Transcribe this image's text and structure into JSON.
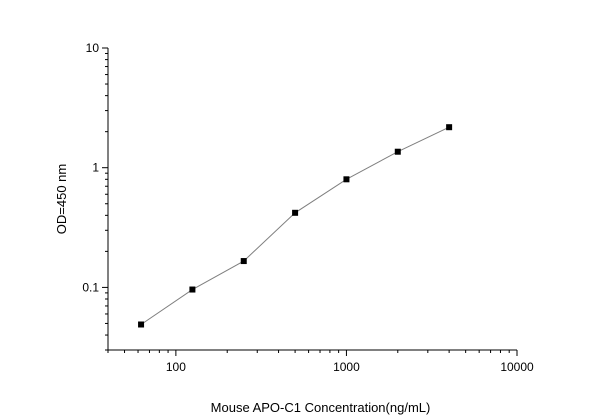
{
  "chart_data": {
    "type": "scatter",
    "title": "",
    "xlabel": "Mouse APO-C1  Concentration(ng/mL)",
    "ylabel": "OD=450 nm",
    "x_scale": "log",
    "y_scale": "log",
    "xlim": [
      40,
      10000
    ],
    "ylim": [
      0.03,
      10
    ],
    "x_ticks": [
      {
        "value": 100,
        "label": "100"
      },
      {
        "value": 1000,
        "label": "1000"
      },
      {
        "value": 10000,
        "label": "10000"
      }
    ],
    "y_ticks": [
      {
        "value": 0.1,
        "label": "0.1"
      },
      {
        "value": 1,
        "label": "1"
      },
      {
        "value": 10,
        "label": "10"
      }
    ],
    "grid": false,
    "series": [
      {
        "x": [
          62.5,
          125,
          250,
          500,
          1000,
          2000,
          4000
        ],
        "y": [
          0.049,
          0.096,
          0.166,
          0.42,
          0.8,
          1.36,
          2.18
        ],
        "marker": "square",
        "line": true,
        "color": "#000000",
        "line_color": "#7f7f7f"
      }
    ]
  }
}
